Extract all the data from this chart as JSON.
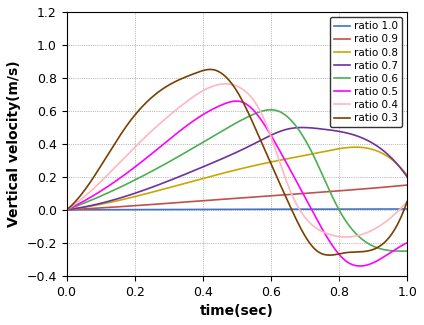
{
  "title": "",
  "xlabel": "time(sec)",
  "ylabel": "Vertical velocity(m/s)",
  "xlim": [
    0,
    1.0
  ],
  "ylim": [
    -0.4,
    1.2
  ],
  "xticks": [
    0,
    0.2,
    0.4,
    0.6,
    0.8,
    1.0
  ],
  "yticks": [
    -0.4,
    -0.2,
    0.0,
    0.2,
    0.4,
    0.6,
    0.8,
    1.0,
    1.2
  ],
  "series": [
    {
      "label": "ratio 1.0",
      "color": "#4472C4",
      "knots_t": [
        0.0,
        0.5,
        1.0
      ],
      "knots_v": [
        0.0,
        0.003,
        0.005
      ]
    },
    {
      "label": "ratio 0.9",
      "color": "#C0504D",
      "knots_t": [
        0.0,
        0.2,
        0.4,
        0.6,
        0.8,
        1.0
      ],
      "knots_v": [
        0.0,
        0.025,
        0.055,
        0.085,
        0.115,
        0.15
      ]
    },
    {
      "label": "ratio 0.8",
      "color": "#C8A800",
      "knots_t": [
        0.0,
        0.2,
        0.4,
        0.6,
        0.75,
        0.85,
        1.0
      ],
      "knots_v": [
        0.0,
        0.08,
        0.19,
        0.29,
        0.35,
        0.38,
        0.21
      ]
    },
    {
      "label": "ratio 0.7",
      "color": "#7030A0",
      "knots_t": [
        0.0,
        0.2,
        0.4,
        0.55,
        0.65,
        0.75,
        0.85,
        1.0
      ],
      "knots_v": [
        0.0,
        0.1,
        0.26,
        0.4,
        0.49,
        0.49,
        0.45,
        0.2
      ]
    },
    {
      "label": "ratio 0.6",
      "color": "#4CAF50",
      "knots_t": [
        0.0,
        0.15,
        0.3,
        0.45,
        0.55,
        0.62,
        0.72,
        0.8,
        0.9,
        1.0
      ],
      "knots_v": [
        0.0,
        0.13,
        0.29,
        0.47,
        0.58,
        0.6,
        0.35,
        0.0,
        -0.22,
        -0.25
      ]
    },
    {
      "label": "ratio 0.5",
      "color": "#FF00FF",
      "knots_t": [
        0.0,
        0.12,
        0.25,
        0.38,
        0.46,
        0.52,
        0.62,
        0.72,
        0.82,
        0.92,
        1.0
      ],
      "knots_v": [
        0.0,
        0.14,
        0.34,
        0.55,
        0.64,
        0.65,
        0.38,
        0.0,
        -0.31,
        -0.3,
        -0.2
      ]
    },
    {
      "label": "ratio 0.4",
      "color": "#FFB6C1",
      "knots_t": [
        0.0,
        0.1,
        0.22,
        0.33,
        0.43,
        0.5,
        0.58,
        0.66,
        0.76,
        0.88,
        1.0
      ],
      "knots_v": [
        0.0,
        0.17,
        0.42,
        0.62,
        0.75,
        0.75,
        0.55,
        0.1,
        -0.14,
        -0.14,
        0.05
      ]
    },
    {
      "label": "ratio 0.3",
      "color": "#7B3F00",
      "knots_t": [
        0.0,
        0.08,
        0.18,
        0.28,
        0.38,
        0.43,
        0.5,
        0.57,
        0.65,
        0.73,
        0.82,
        0.92,
        1.0
      ],
      "knots_v": [
        0.0,
        0.2,
        0.52,
        0.73,
        0.83,
        0.85,
        0.72,
        0.42,
        0.05,
        -0.24,
        -0.26,
        -0.22,
        0.05
      ]
    }
  ],
  "grid": true,
  "legend_fontsize": 7.5,
  "axis_fontsize": 10,
  "tick_fontsize": 9,
  "linewidth": 1.2
}
